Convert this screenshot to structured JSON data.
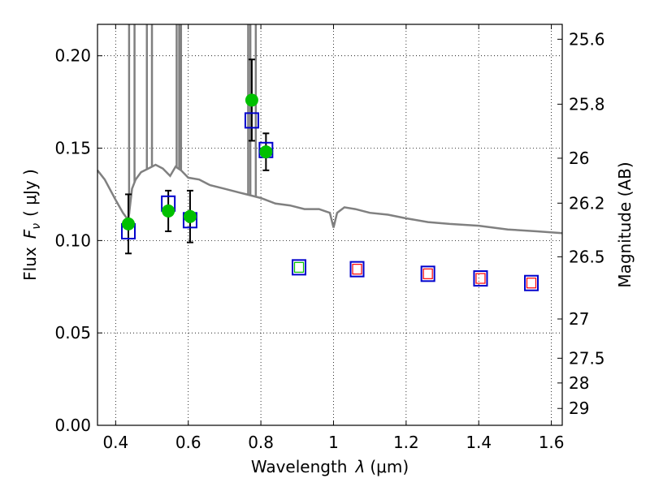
{
  "chart_data": {
    "type": "scatter",
    "xlabel": "Wavelength",
    "xlabel_symbol": "λ",
    "xlabel_unit": "(μm)",
    "ylabel": "Flux",
    "ylabel_symbol": "F",
    "ylabel_subscript": "ν",
    "ylabel_unit": "( μJy )",
    "y2label": "Magnitude (AB)",
    "xlim": [
      0.35,
      1.63
    ],
    "ylim": [
      0.0,
      0.217
    ],
    "grid": true,
    "xticks": [
      0.4,
      0.6,
      0.8,
      1.0,
      1.2,
      1.4,
      1.6
    ],
    "xtick_labels": [
      "0.4",
      "0.6",
      "0.8",
      "1",
      "1.2",
      "1.4",
      "1.6"
    ],
    "yticks": [
      0.0,
      0.05,
      0.1,
      0.15,
      0.2
    ],
    "ytick_labels": [
      "0.00",
      "0.05",
      "0.10",
      "0.15",
      "0.20"
    ],
    "y2ticks_mag": [
      25.6,
      25.8,
      26,
      26.2,
      26.5,
      27,
      27.5,
      28,
      29
    ],
    "y2tick_labels": [
      "25.6",
      "25.8",
      "26",
      "26.2",
      "26.5",
      "27",
      "27.5",
      "28",
      "29"
    ],
    "colors": {
      "observed": "#00c000",
      "model_box": "#0000cc",
      "sed_line": "#808080",
      "inner_green": "#00c000",
      "inner_red": "#ff0000"
    },
    "observed": [
      {
        "x": 0.435,
        "y": 0.109,
        "err": 0.016
      },
      {
        "x": 0.545,
        "y": 0.116,
        "err": 0.011
      },
      {
        "x": 0.605,
        "y": 0.113,
        "err": 0.014
      },
      {
        "x": 0.775,
        "y": 0.176,
        "err": 0.022
      },
      {
        "x": 0.814,
        "y": 0.148,
        "err": 0.01
      }
    ],
    "model_boxes": [
      {
        "x": 0.435,
        "y": 0.105,
        "inner": "none"
      },
      {
        "x": 0.545,
        "y": 0.12,
        "inner": "none"
      },
      {
        "x": 0.605,
        "y": 0.111,
        "inner": "none"
      },
      {
        "x": 0.775,
        "y": 0.165,
        "inner": "none"
      },
      {
        "x": 0.814,
        "y": 0.149,
        "inner": "none"
      },
      {
        "x": 0.905,
        "y": 0.0855,
        "inner": "green"
      },
      {
        "x": 1.065,
        "y": 0.0845,
        "inner": "red"
      },
      {
        "x": 1.26,
        "y": 0.082,
        "inner": "red"
      },
      {
        "x": 1.405,
        "y": 0.0795,
        "inner": "red"
      },
      {
        "x": 1.545,
        "y": 0.077,
        "inner": "red"
      }
    ],
    "sed_continuum": [
      [
        0.35,
        0.138
      ],
      [
        0.37,
        0.133
      ],
      [
        0.4,
        0.122
      ],
      [
        0.42,
        0.115
      ],
      [
        0.435,
        0.111
      ],
      [
        0.445,
        0.128
      ],
      [
        0.455,
        0.133
      ],
      [
        0.47,
        0.137
      ],
      [
        0.49,
        0.139
      ],
      [
        0.51,
        0.141
      ],
      [
        0.53,
        0.139
      ],
      [
        0.55,
        0.135
      ],
      [
        0.565,
        0.14
      ],
      [
        0.58,
        0.138
      ],
      [
        0.6,
        0.134
      ],
      [
        0.63,
        0.133
      ],
      [
        0.66,
        0.13
      ],
      [
        0.7,
        0.128
      ],
      [
        0.74,
        0.126
      ],
      [
        0.76,
        0.125
      ],
      [
        0.8,
        0.123
      ],
      [
        0.84,
        0.12
      ],
      [
        0.88,
        0.119
      ],
      [
        0.92,
        0.117
      ],
      [
        0.96,
        0.117
      ],
      [
        0.99,
        0.115
      ],
      [
        1.0,
        0.107
      ],
      [
        1.01,
        0.115
      ],
      [
        1.03,
        0.118
      ],
      [
        1.06,
        0.117
      ],
      [
        1.1,
        0.115
      ],
      [
        1.15,
        0.114
      ],
      [
        1.2,
        0.112
      ],
      [
        1.26,
        0.11
      ],
      [
        1.32,
        0.109
      ],
      [
        1.4,
        0.108
      ],
      [
        1.48,
        0.106
      ],
      [
        1.56,
        0.105
      ],
      [
        1.63,
        0.104
      ]
    ],
    "emission_lines": [
      {
        "x": 0.437,
        "top": 0.217
      },
      {
        "x": 0.452,
        "top": 0.217
      },
      {
        "x": 0.486,
        "top": 0.217
      },
      {
        "x": 0.5,
        "top": 0.217
      },
      {
        "x": 0.568,
        "top": 0.217
      },
      {
        "x": 0.575,
        "top": 0.217
      },
      {
        "x": 0.58,
        "top": 0.217
      },
      {
        "x": 0.765,
        "top": 0.217
      },
      {
        "x": 0.771,
        "top": 0.217
      },
      {
        "x": 0.786,
        "top": 0.217
      }
    ]
  }
}
